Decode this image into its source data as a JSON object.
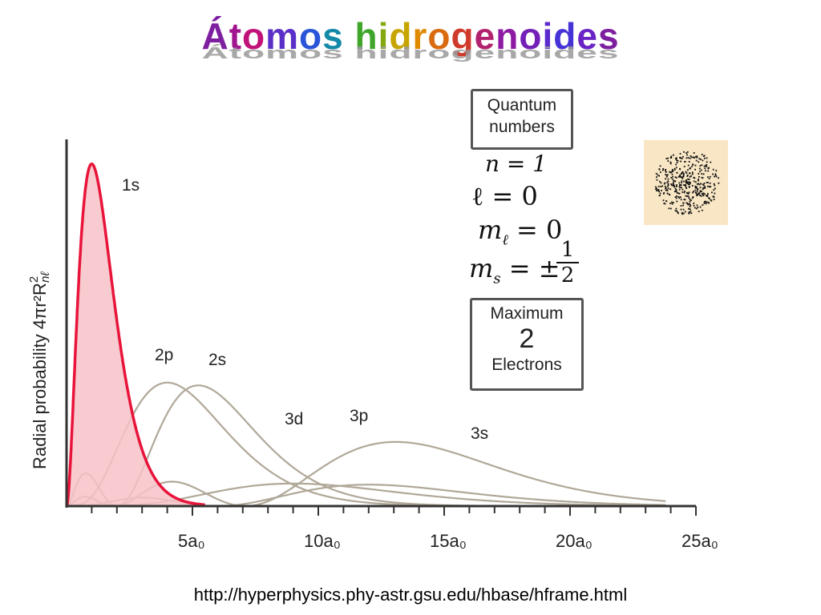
{
  "title": "Átomos hidrogenoides",
  "source_url": "http://hyperphysics.phy-astr.gsu.edu/hbase/hframe.html",
  "quantum_box": {
    "header_line1": "Quantum",
    "header_line2": "numbers",
    "n": "n = 1",
    "l": "ℓ = 0",
    "ml": "m",
    "ml_sub": "ℓ",
    "ml_rest": "= 0",
    "ms": "m",
    "ms_sub": "s",
    "ms_rest": "= ±",
    "ms_num": "1",
    "ms_den": "2"
  },
  "max_box": {
    "line1": "Maximum",
    "value": "2",
    "line3": "Electrons"
  },
  "colors": {
    "highlight": "#e8143a",
    "highlight_fill": "#f7c2c8",
    "other_curves": "#b0a898",
    "orbital_bg": "#f8e6c4"
  },
  "chart_data": {
    "type": "line",
    "ylabel": "Radial probability 4πr²R",
    "ylabel_sub": "nℓ",
    "ylabel_sup": "2",
    "x_ticks": [
      "5a₀",
      "10a₀",
      "15a₀",
      "20a₀",
      "25a₀"
    ],
    "x_tick_values": [
      5,
      10,
      15,
      20,
      25
    ],
    "xlim": [
      0,
      25
    ],
    "ylim": [
      0,
      0.56
    ],
    "highlighted_series": "1s",
    "series": [
      {
        "name": "1s",
        "n": 1,
        "l": 0
      },
      {
        "name": "2s",
        "n": 2,
        "l": 0
      },
      {
        "name": "2p",
        "n": 2,
        "l": 1
      },
      {
        "name": "3s",
        "n": 3,
        "l": 0
      },
      {
        "name": "3p",
        "n": 3,
        "l": 1
      },
      {
        "name": "3d",
        "n": 3,
        "l": 2
      }
    ]
  }
}
